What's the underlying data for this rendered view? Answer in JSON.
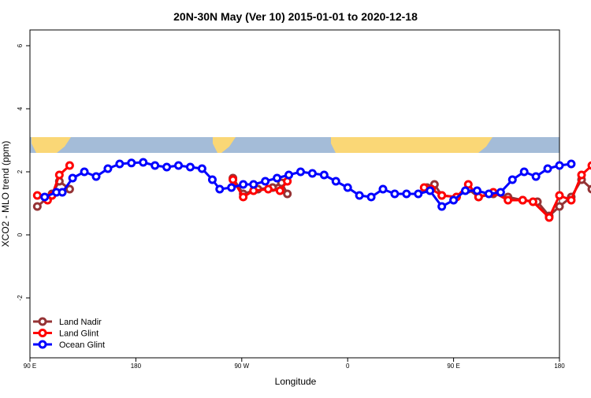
{
  "chart_data": {
    "type": "line",
    "title": "20N-30N May (Ver 10)   2015-01-01 to 2020-12-18",
    "xlabel": "Longitude",
    "ylabel": "XCO2 - MLO trend (ppm)",
    "xlim": [
      90,
      450
    ],
    "ylim": [
      -3.9,
      6.5
    ],
    "x_ticks": [
      {
        "value": 90,
        "label": "90 E"
      },
      {
        "value": 180,
        "label": "180"
      },
      {
        "value": 270,
        "label": "90 W"
      },
      {
        "value": 360,
        "label": "0"
      },
      {
        "value": 450,
        "label": "90 E"
      },
      {
        "value": 540,
        "label": "180"
      }
    ],
    "y_ticks": [
      {
        "value": -2,
        "label": "-2"
      },
      {
        "value": 0,
        "label": "0"
      },
      {
        "value": 2,
        "label": "2"
      },
      {
        "value": 4,
        "label": "4"
      },
      {
        "value": 6,
        "label": "6"
      }
    ],
    "map_band": {
      "y_min": 2.6,
      "y_max": 3.1,
      "ocean_color": "#a4bcd8",
      "land_color": "#fad776"
    },
    "grid": false,
    "legend_position": "bottom-left",
    "series": [
      {
        "name": "Land Nadir",
        "color": "#953335",
        "segments": [
          [
            [
              95,
              0.9
            ],
            [
              105,
              1.3
            ],
            [
              110,
              1.7
            ],
            [
              117,
              1.45
            ]
          ],
          [
            [
              228,
              1.8
            ],
            [
              235,
              1.3
            ],
            [
              245,
              1.45
            ],
            [
              255,
              1.5
            ],
            [
              261,
              1.65
            ],
            [
              265,
              1.3
            ]
          ],
          [
            [
              360,
              1.5
            ],
            [
              365,
              1.6
            ],
            [
              370,
              1.25
            ],
            [
              380,
              1.2
            ],
            [
              388,
              1.45
            ],
            [
              395,
              1.2
            ],
            [
              405,
              1.3
            ],
            [
              415,
              1.2
            ],
            [
              425,
              1.1
            ],
            [
              435,
              1.05
            ],
            [
              443,
              0.6
            ],
            [
              450,
              0.9
            ],
            [
              458,
              1.2
            ],
            [
              465,
              1.75
            ],
            [
              472,
              1.45
            ]
          ]
        ]
      },
      {
        "name": "Land Glint",
        "color": "#ff0000",
        "segments": [
          [
            [
              95,
              1.25
            ],
            [
              102,
              1.1
            ],
            [
              105,
              1.25
            ],
            [
              110,
              1.9
            ],
            [
              117,
              2.2
            ]
          ],
          [
            [
              228,
              1.75
            ],
            [
              235,
              1.2
            ],
            [
              242,
              1.4
            ],
            [
              252,
              1.45
            ],
            [
              260,
              1.4
            ],
            [
              265,
              1.7
            ]
          ],
          [
            [
              358,
              1.5
            ],
            [
              363,
              1.45
            ],
            [
              370,
              1.25
            ],
            [
              380,
              1.2
            ],
            [
              388,
              1.6
            ],
            [
              395,
              1.2
            ],
            [
              405,
              1.35
            ],
            [
              415,
              1.1
            ],
            [
              425,
              1.1
            ],
            [
              432,
              1.05
            ],
            [
              443,
              0.55
            ],
            [
              450,
              1.25
            ],
            [
              458,
              1.1
            ],
            [
              465,
              1.9
            ],
            [
              472,
              2.2
            ]
          ]
        ]
      },
      {
        "name": "Ocean Glint",
        "color": "#0000ff",
        "segments": [
          [
            [
              100,
              1.2
            ],
            [
              108,
              1.35
            ],
            [
              112,
              1.35
            ],
            [
              119,
              1.8
            ],
            [
              127,
              2.0
            ],
            [
              135,
              1.85
            ],
            [
              143,
              2.1
            ],
            [
              151,
              2.25
            ],
            [
              159,
              2.28
            ],
            [
              167,
              2.3
            ],
            [
              175,
              2.2
            ],
            [
              183,
              2.15
            ],
            [
              191,
              2.2
            ],
            [
              199,
              2.15
            ],
            [
              207,
              2.1
            ],
            [
              214,
              1.75
            ],
            [
              219,
              1.45
            ],
            [
              227,
              1.5
            ],
            [
              235,
              1.6
            ],
            [
              242,
              1.6
            ],
            [
              250,
              1.7
            ],
            [
              258,
              1.8
            ],
            [
              266,
              1.9
            ],
            [
              274,
              2.0
            ],
            [
              282,
              1.95
            ],
            [
              290,
              1.9
            ],
            [
              298,
              1.7
            ],
            [
              306,
              1.5
            ],
            [
              314,
              1.25
            ],
            [
              322,
              1.2
            ],
            [
              330,
              1.45
            ],
            [
              338,
              1.3
            ],
            [
              346,
              1.3
            ],
            [
              354,
              1.3
            ],
            [
              362,
              1.4
            ],
            [
              370,
              0.9
            ],
            [
              378,
              1.1
            ],
            [
              386,
              1.4
            ],
            [
              394,
              1.4
            ],
            [
              402,
              1.3
            ],
            [
              410,
              1.35
            ],
            [
              418,
              1.75
            ],
            [
              426,
              2.0
            ],
            [
              434,
              1.85
            ],
            [
              442,
              2.1
            ],
            [
              450,
              2.2
            ],
            [
              458,
              2.25
            ]
          ]
        ]
      }
    ]
  }
}
